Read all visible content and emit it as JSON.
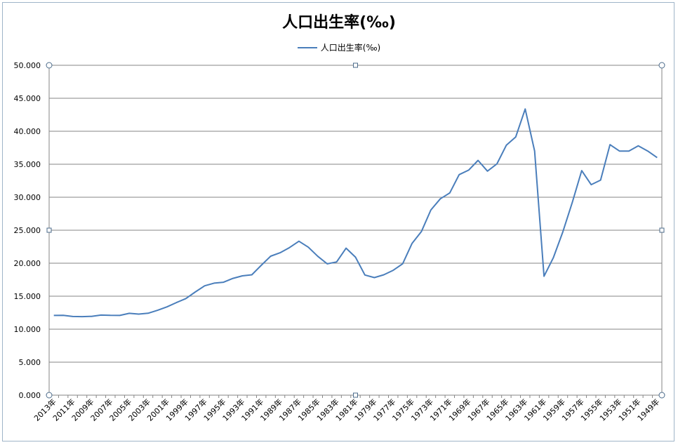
{
  "chart_data": {
    "type": "line",
    "title": "人口出生率(‰)",
    "legend": {
      "position": "top",
      "entries": [
        "人口出生率(‰)"
      ]
    },
    "xlabel": "",
    "ylabel": "",
    "ylim": [
      0,
      50
    ],
    "yticks": [
      "0.000",
      "5.000",
      "10.000",
      "15.000",
      "20.000",
      "25.000",
      "30.000",
      "35.000",
      "40.000",
      "45.000",
      "50.000"
    ],
    "grid": true,
    "line_color": "#4a7ebb",
    "categories": [
      "2013年",
      "2012年",
      "2011年",
      "2010年",
      "2009年",
      "2008年",
      "2007年",
      "2006年",
      "2005年",
      "2004年",
      "2003年",
      "2002年",
      "2001年",
      "2000年",
      "1999年",
      "1998年",
      "1997年",
      "1996年",
      "1995年",
      "1994年",
      "1993年",
      "1992年",
      "1991年",
      "1990年",
      "1989年",
      "1988年",
      "1987年",
      "1986年",
      "1985年",
      "1984年",
      "1983年",
      "1982年",
      "1981年",
      "1980年",
      "1979年",
      "1978年",
      "1977年",
      "1976年",
      "1975年",
      "1974年",
      "1973年",
      "1972年",
      "1971年",
      "1970年",
      "1969年",
      "1968年",
      "1967年",
      "1966年",
      "1965年",
      "1964年",
      "1963年",
      "1962年",
      "1961年",
      "1960年",
      "1959年",
      "1958年",
      "1957年",
      "1956年",
      "1955年",
      "1954年",
      "1953年",
      "1952年",
      "1951年",
      "1950年",
      "1949年"
    ],
    "xtick_labels": [
      "2013年",
      "2011年",
      "2009年",
      "2007年",
      "2005年",
      "2003年",
      "2001年",
      "1999年",
      "1997年",
      "1995年",
      "1993年",
      "1991年",
      "1989年",
      "1987年",
      "1985年",
      "1983年",
      "1981年",
      "1979年",
      "1977年",
      "1975年",
      "1973年",
      "1971年",
      "1969年",
      "1967年",
      "1965年",
      "1963年",
      "1961年",
      "1959年",
      "1957年",
      "1955年",
      "1953年",
      "1951年",
      "1949年"
    ],
    "series": [
      {
        "name": "人口出生率(‰)",
        "values": [
          12.08,
          12.1,
          11.93,
          11.9,
          11.95,
          12.14,
          12.1,
          12.09,
          12.4,
          12.29,
          12.41,
          12.86,
          13.38,
          14.03,
          14.64,
          15.64,
          16.57,
          16.98,
          17.12,
          17.7,
          18.09,
          18.24,
          19.68,
          21.06,
          21.58,
          22.37,
          23.33,
          22.43,
          21.04,
          19.9,
          20.19,
          22.28,
          20.91,
          18.21,
          17.82,
          18.25,
          18.93,
          19.91,
          23.01,
          24.82,
          28.07,
          29.77,
          30.65,
          33.43,
          34.11,
          35.59,
          33.96,
          35.05,
          37.88,
          39.14,
          43.37,
          37.01,
          18.02,
          20.86,
          24.78,
          29.22,
          34.03,
          31.9,
          32.6,
          37.97,
          37.0,
          37.0,
          37.8,
          37.0,
          36.0
        ]
      }
    ]
  }
}
